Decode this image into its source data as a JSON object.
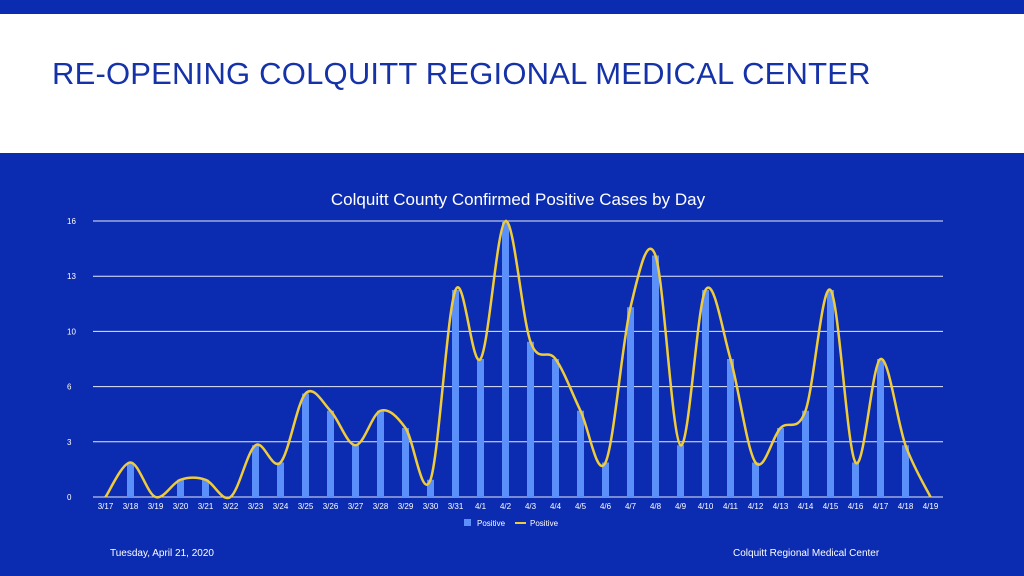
{
  "slide": {
    "title": "RE-OPENING COLQUITT REGIONAL MEDICAL CENTER",
    "footer_date": "Tuesday, April 21, 2020",
    "footer_org": "Colquitt Regional Medical Center"
  },
  "colors": {
    "background": "#0b2cb0",
    "title_text": "#1632a8",
    "bar": "#5b8ff9",
    "line": "#f0cc3a",
    "grid": "#ffffff"
  },
  "chart_data": {
    "type": "bar",
    "title": "Colquitt County Confirmed Positive Cases by Day",
    "xlabel": "",
    "ylabel": "",
    "ylim": [
      0,
      16
    ],
    "yticks": [
      "0",
      "3",
      "6",
      "10",
      "13",
      "16"
    ],
    "grid": true,
    "legend_position": "bottom",
    "categories": [
      "3/17",
      "3/18",
      "3/19",
      "3/20",
      "3/21",
      "3/22",
      "3/23",
      "3/24",
      "3/25",
      "3/26",
      "3/27",
      "3/28",
      "3/29",
      "3/30",
      "3/31",
      "4/1",
      "4/2",
      "4/3",
      "4/4",
      "4/5",
      "4/6",
      "4/7",
      "4/8",
      "4/9",
      "4/10",
      "4/11",
      "4/12",
      "4/13",
      "4/14",
      "4/15",
      "4/16",
      "4/17",
      "4/18",
      "4/19"
    ],
    "series": [
      {
        "name": "Positive",
        "type": "bar",
        "values": [
          0,
          2,
          0,
          1,
          1,
          0,
          3,
          2,
          6,
          5,
          3,
          5,
          4,
          1,
          12,
          8,
          16,
          9,
          8,
          5,
          2,
          11,
          14,
          3,
          12,
          8,
          2,
          4,
          5,
          12,
          2,
          8,
          3,
          0
        ]
      },
      {
        "name": "Positive",
        "type": "line",
        "values": [
          0,
          2,
          0,
          1,
          1,
          0,
          3,
          2,
          6,
          5,
          3,
          5,
          4,
          1,
          12,
          8,
          16,
          9,
          8,
          5,
          2,
          11,
          14,
          3,
          12,
          8,
          2,
          4,
          5,
          12,
          2,
          8,
          3,
          0
        ]
      }
    ]
  }
}
